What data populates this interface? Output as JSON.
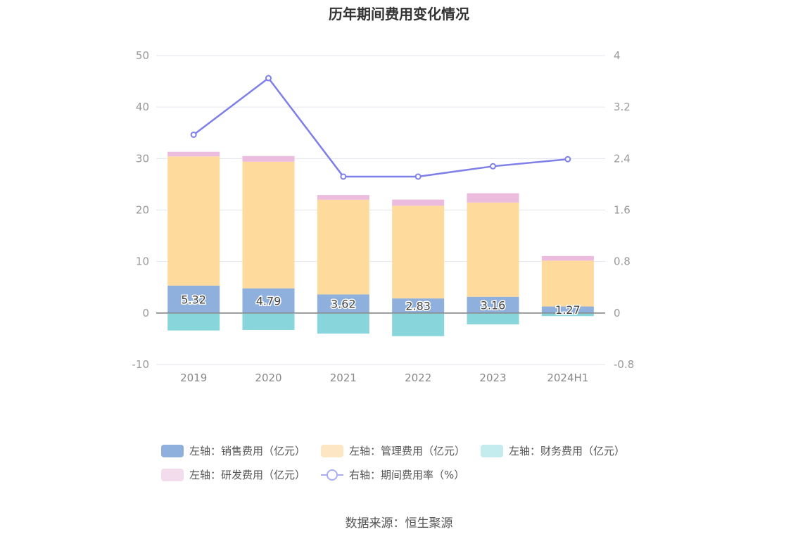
{
  "chart_data": {
    "type": "bar",
    "title": "历年期间费用变化情况",
    "categories": [
      "2019",
      "2020",
      "2021",
      "2022",
      "2023",
      "2024H1"
    ],
    "left_axis": {
      "min": -10,
      "max": 50,
      "ticks": [
        "50",
        "40",
        "30",
        "20",
        "10",
        "0",
        "-10"
      ]
    },
    "right_axis": {
      "min": -0.8,
      "max": 4,
      "ticks": [
        "4",
        "3.2",
        "2.4",
        "1.6",
        "0.8",
        "0",
        "-0.8"
      ]
    },
    "series": [
      {
        "name": "左轴：销售费用（亿元）",
        "type": "bar",
        "axis": "left",
        "color": "#8fb0dc",
        "values": [
          5.32,
          4.79,
          3.62,
          2.83,
          3.16,
          1.27
        ],
        "labels": [
          "5.32",
          "4.79",
          "3.62",
          "2.83",
          "3.16",
          "1.27"
        ]
      },
      {
        "name": "左轴：管理费用（亿元）",
        "type": "bar",
        "axis": "left",
        "color": "#fedb9c",
        "values": [
          25.1,
          24.6,
          18.4,
          18.0,
          18.3,
          8.9
        ]
      },
      {
        "name": "左轴：财务费用（亿元）",
        "type": "bar",
        "axis": "left",
        "color": "#88d6db",
        "values": [
          -3.4,
          -3.3,
          -4.0,
          -4.5,
          -2.2,
          -0.6
        ]
      },
      {
        "name": "左轴：研发费用（亿元）",
        "type": "bar",
        "axis": "left",
        "color": "#ebbcdd",
        "values": [
          0.9,
          1.1,
          0.9,
          1.2,
          1.8,
          0.9
        ]
      },
      {
        "name": "右轴：期间费用率（%）",
        "type": "line",
        "axis": "right",
        "color": "#7f7fe8",
        "values": [
          2.77,
          3.65,
          2.12,
          2.12,
          2.28,
          2.39
        ]
      }
    ],
    "legend_position": "bottom",
    "grid": true
  },
  "legend": {
    "row1": [
      {
        "label": "左轴：销售费用（亿元）",
        "color": "#8fb0dc"
      },
      {
        "label": "左轴：管理费用（亿元）",
        "color": "#fde6c4"
      },
      {
        "label": "左轴：财务费用（亿元）",
        "color": "#c4ebee"
      }
    ],
    "row2": [
      {
        "label": "左轴：研发费用（亿元）",
        "color": "#f3dcec"
      },
      {
        "label": "右轴：期间费用率（%）",
        "color": "#a9aef2"
      }
    ]
  },
  "source": "数据来源：恒生聚源"
}
